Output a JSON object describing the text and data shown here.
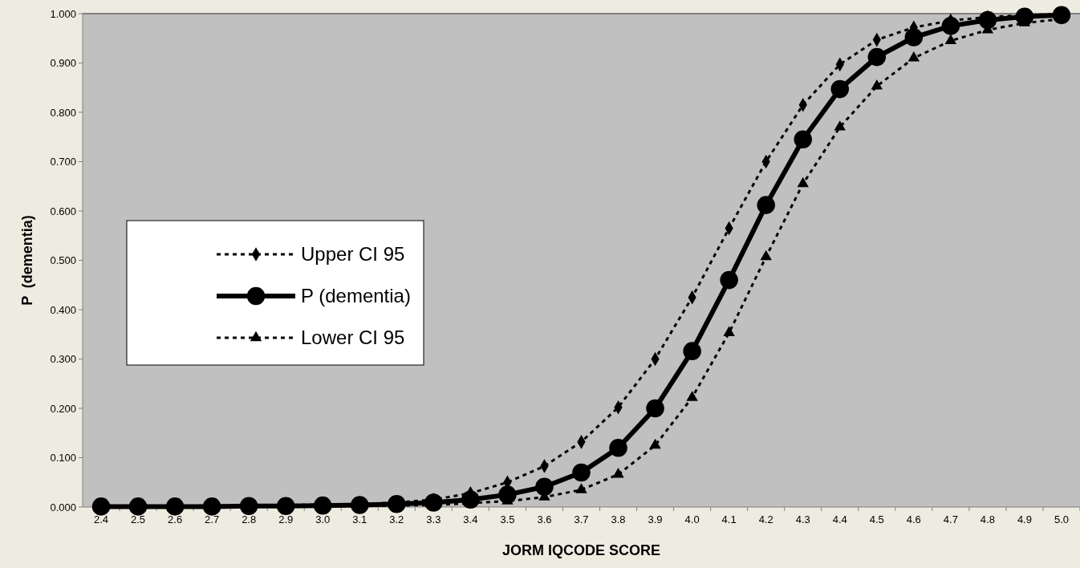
{
  "chart_data": {
    "type": "line",
    "xlabel": "JORM IQCODE SCORE",
    "ylabel": "P  (dementia)",
    "categories": [
      "2.4",
      "2.5",
      "2.6",
      "2.7",
      "2.8",
      "2.9",
      "3.0",
      "3.1",
      "3.2",
      "3.3",
      "3.4",
      "3.5",
      "3.6",
      "3.7",
      "3.8",
      "3.9",
      "4.0",
      "4.1",
      "4.2",
      "4.3",
      "4.4",
      "4.5",
      "4.6",
      "4.7",
      "4.8",
      "4.9",
      "5.0"
    ],
    "series": [
      {
        "name": "Upper CI 95",
        "color": "#000000",
        "marker": "diamond",
        "line_style": "dashed",
        "values": [
          0.002,
          0.002,
          0.002,
          0.003,
          0.003,
          0.004,
          0.005,
          0.006,
          0.009,
          0.015,
          0.028,
          0.05,
          0.083,
          0.132,
          0.202,
          0.3,
          0.425,
          0.565,
          0.7,
          0.815,
          0.897,
          0.947,
          0.972,
          0.986,
          0.993,
          0.997,
          0.999
        ]
      },
      {
        "name": "P (dementia)",
        "color": "#000000",
        "marker": "circle",
        "line_style": "solid",
        "values": [
          0.001,
          0.001,
          0.001,
          0.001,
          0.002,
          0.002,
          0.003,
          0.004,
          0.006,
          0.009,
          0.015,
          0.025,
          0.041,
          0.07,
          0.12,
          0.2,
          0.316,
          0.46,
          0.612,
          0.745,
          0.847,
          0.912,
          0.952,
          0.975,
          0.987,
          0.994,
          0.997
        ]
      },
      {
        "name": "Lower CI 95",
        "color": "#000000",
        "marker": "triangle",
        "line_style": "dashed",
        "values": [
          0.0,
          0.0,
          0.0,
          0.0,
          0.001,
          0.001,
          0.001,
          0.002,
          0.003,
          0.004,
          0.008,
          0.012,
          0.02,
          0.035,
          0.066,
          0.125,
          0.222,
          0.353,
          0.507,
          0.655,
          0.77,
          0.853,
          0.91,
          0.945,
          0.967,
          0.981,
          0.989
        ]
      }
    ],
    "ylim": [
      0,
      1
    ],
    "yticks": [
      {
        "value": 0,
        "label": "0.000"
      },
      {
        "value": 0.1,
        "label": "0.100"
      },
      {
        "value": 0.2,
        "label": "0.200"
      },
      {
        "value": 0.3,
        "label": "0.300"
      },
      {
        "value": 0.4,
        "label": "0.400"
      },
      {
        "value": 0.5,
        "label": "0.500"
      },
      {
        "value": 0.6,
        "label": "0.600"
      },
      {
        "value": 0.7,
        "label": "0.700"
      },
      {
        "value": 0.8,
        "label": "0.800"
      },
      {
        "value": 0.9,
        "label": "0.900"
      },
      {
        "value": 1,
        "label": "1.000"
      }
    ],
    "grid": false,
    "legend": "left"
  }
}
